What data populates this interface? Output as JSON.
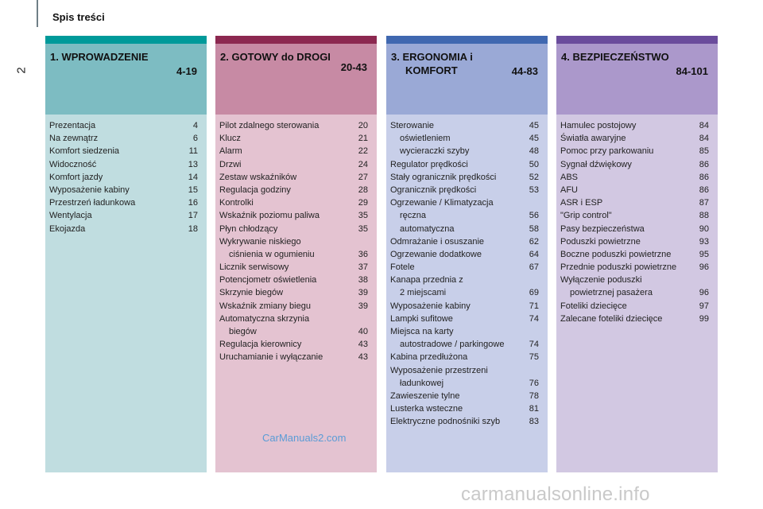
{
  "header": {
    "title": "Spis treści",
    "page_number": "2"
  },
  "colors": {
    "col1": {
      "strip": "#009a9a",
      "head": "#7dbcc2",
      "body": "#c0dde0"
    },
    "col2": {
      "strip": "#8c2850",
      "head": "#c78aa4",
      "body": "#e4c3d1"
    },
    "col3": {
      "strip": "#4068b0",
      "head": "#9aa9d6",
      "body": "#c8cfe9"
    },
    "col4": {
      "strip": "#6a4c9c",
      "head": "#ab98cb",
      "body": "#d2c8e2"
    }
  },
  "columns": [
    {
      "title": "1. WPROWADZENIE",
      "title2": "",
      "range": "4-19",
      "entries": [
        {
          "text": "Prezentacja",
          "page": "4"
        },
        {
          "text": "Na zewnątrz",
          "page": "6"
        },
        {
          "text": "Komfort siedzenia",
          "page": "11"
        },
        {
          "text": "Widoczność",
          "page": "13"
        },
        {
          "text": "Komfort jazdy",
          "page": "14"
        },
        {
          "text": "Wyposażenie kabiny",
          "page": "15"
        },
        {
          "text": "Przestrzeń ładunkowa",
          "page": "16"
        },
        {
          "text": "Wentylacja",
          "page": "17"
        },
        {
          "text": "Ekojazda",
          "page": "18"
        }
      ]
    },
    {
      "title": "2. GOTOWY do DROGI",
      "title2": "",
      "range": "20-43",
      "entries": [
        {
          "text": "Pilot zdalnego sterowania",
          "page": "20"
        },
        {
          "text": "Klucz",
          "page": "21"
        },
        {
          "text": "Alarm",
          "page": "22"
        },
        {
          "text": "Drzwi",
          "page": "24"
        },
        {
          "text": "Zestaw wskaźników",
          "page": "27"
        },
        {
          "text": "Regulacja godziny",
          "page": "28"
        },
        {
          "text": "Kontrolki",
          "page": "29"
        },
        {
          "text": "Wskaźnik poziomu paliwa",
          "page": "35"
        },
        {
          "text": "Płyn chłodzący",
          "page": "35"
        },
        {
          "text": "Wykrywanie niskiego",
          "page": ""
        },
        {
          "text": "ciśnienia w ogumieniu",
          "page": "36",
          "indent": true
        },
        {
          "text": "Licznik serwisowy",
          "page": "37"
        },
        {
          "text": "Potencjometr oświetlenia",
          "page": "38"
        },
        {
          "text": "Skrzynie biegów",
          "page": "39"
        },
        {
          "text": "Wskaźnik zmiany biegu",
          "page": "39"
        },
        {
          "text": "Automatyczna skrzynia",
          "page": ""
        },
        {
          "text": "biegów",
          "page": "40",
          "indent": true
        },
        {
          "text": "Regulacja kierownicy",
          "page": "43"
        },
        {
          "text": "Uruchamianie i wyłączanie",
          "page": "43"
        }
      ]
    },
    {
      "title": "3. ERGONOMIA i",
      "title2": "KOMFORT",
      "range": "44-83",
      "entries": [
        {
          "text": "Sterowanie",
          "page": "45"
        },
        {
          "text": "oświetleniem",
          "page": "45",
          "indent": true
        },
        {
          "text": "wycieraczki szyby",
          "page": "48",
          "indent": true
        },
        {
          "text": "Regulator prędkości",
          "page": "50"
        },
        {
          "text": "Stały ogranicznik prędkości",
          "page": "52"
        },
        {
          "text": "Ogranicznik prędkości",
          "page": "53"
        },
        {
          "text": "Ogrzewanie / Klimatyzacja",
          "page": ""
        },
        {
          "text": "ręczna",
          "page": "56",
          "indent": true
        },
        {
          "text": "automatyczna",
          "page": "58",
          "indent": true
        },
        {
          "text": "Odmrażanie i osuszanie",
          "page": "62"
        },
        {
          "text": "Ogrzewanie dodatkowe",
          "page": "64"
        },
        {
          "text": "Fotele",
          "page": "67"
        },
        {
          "text": "Kanapa przednia z",
          "page": ""
        },
        {
          "text": "2 miejscami",
          "page": "69",
          "indent": true
        },
        {
          "text": "Wyposażenie kabiny",
          "page": "71"
        },
        {
          "text": "Lampki sufitowe",
          "page": "74"
        },
        {
          "text": "Miejsca na karty",
          "page": ""
        },
        {
          "text": "autostradowe / parkingowe",
          "page": "74",
          "indent": true
        },
        {
          "text": "Kabina przedłużona",
          "page": "75"
        },
        {
          "text": "Wyposażenie przestrzeni",
          "page": ""
        },
        {
          "text": "ładunkowej",
          "page": "76",
          "indent": true
        },
        {
          "text": "Zawieszenie tylne",
          "page": "78"
        },
        {
          "text": "Lusterka wsteczne",
          "page": "81"
        },
        {
          "text": "Elektryczne podnośniki szyb",
          "page": "83"
        }
      ]
    },
    {
      "title": "4. BEZPIECZEŃSTWO",
      "title2": "",
      "range": "84-101",
      "entries": [
        {
          "text": "Hamulec postojowy",
          "page": "84"
        },
        {
          "text": "Światła awaryjne",
          "page": "84"
        },
        {
          "text": "Pomoc przy parkowaniu",
          "page": "85"
        },
        {
          "text": "Sygnał dźwiękowy",
          "page": "86"
        },
        {
          "text": "ABS",
          "page": "86"
        },
        {
          "text": "AFU",
          "page": "86"
        },
        {
          "text": "ASR i ESP",
          "page": "87"
        },
        {
          "text": "\"Grip control\"",
          "page": "88"
        },
        {
          "text": "Pasy bezpieczeństwa",
          "page": "90"
        },
        {
          "text": "Poduszki powietrzne",
          "page": "93"
        },
        {
          "text": "Boczne poduszki powietrzne",
          "page": "95"
        },
        {
          "text": "Przednie poduszki powietrzne",
          "page": "96"
        },
        {
          "text": "Wyłączenie poduszki",
          "page": ""
        },
        {
          "text": "powietrznej pasażera",
          "page": "96",
          "indent": true
        },
        {
          "text": "Foteliki dziecięce",
          "page": "97"
        },
        {
          "text": "Zalecane foteliki dziecięce",
          "page": "99"
        }
      ]
    }
  ],
  "watermarks": {
    "center": "CarManuals2.com",
    "footer": "carmanualsonline.info"
  }
}
